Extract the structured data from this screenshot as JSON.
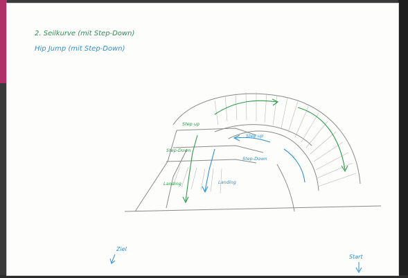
{
  "viewer": {
    "background": "#3a3a3a",
    "sheet_color": "#fdfdfb",
    "accent_strip_color": "#b0306a"
  },
  "sketch": {
    "title_line_1": "2. Seilkurve (mit Step-Down)",
    "title_line_2": "Hip Jump (mit Step-Down)",
    "labels": {
      "step_up": "Step up",
      "step_down_left": "Step-Down",
      "landing_left": "Landing",
      "landing_right": "Landing",
      "step_down_center": "Step-Down",
      "step_up_right": "Step up",
      "ziel": "Ziel",
      "start": "Start"
    },
    "colors": {
      "title_1": "#2e8b57",
      "title_2": "#2a8fd4",
      "green_route": "#2e9a4a",
      "blue_route": "#2a8fd4",
      "pencil": "#8a8a8a"
    }
  }
}
